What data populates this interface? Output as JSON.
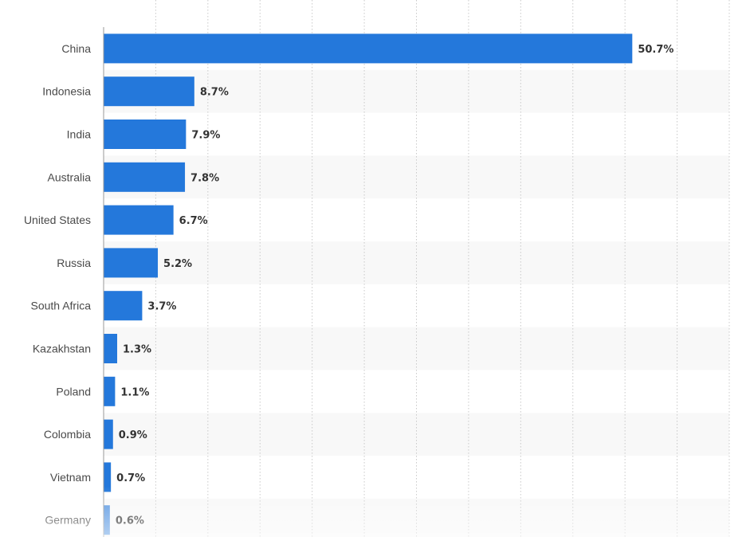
{
  "chart_data": {
    "type": "bar",
    "orientation": "horizontal",
    "categories": [
      "China",
      "Indonesia",
      "India",
      "Australia",
      "United States",
      "Russia",
      "South Africa",
      "Kazakhstan",
      "Poland",
      "Colombia",
      "Vietnam",
      "Germany"
    ],
    "values": [
      50.7,
      8.7,
      7.9,
      7.8,
      6.7,
      5.2,
      3.7,
      1.3,
      1.1,
      0.9,
      0.7,
      0.6
    ],
    "value_labels": [
      "50.7%",
      "8.7%",
      "7.9%",
      "7.8%",
      "6.7%",
      "5.2%",
      "3.7%",
      "1.3%",
      "1.1%",
      "0.9%",
      "0.7%",
      "0.6%"
    ],
    "unit": "%",
    "xlim": [
      0,
      60
    ],
    "grid": true,
    "grid_step": 5,
    "alternating_row_bands": true,
    "title": "",
    "xlabel": "",
    "ylabel": ""
  },
  "colors": {
    "bar": "#2478db",
    "band": "#f8f8f8",
    "grid": "#c9c9c9",
    "axis": "#999999",
    "category_text": "#4a4a4a",
    "value_text": "#333333"
  }
}
